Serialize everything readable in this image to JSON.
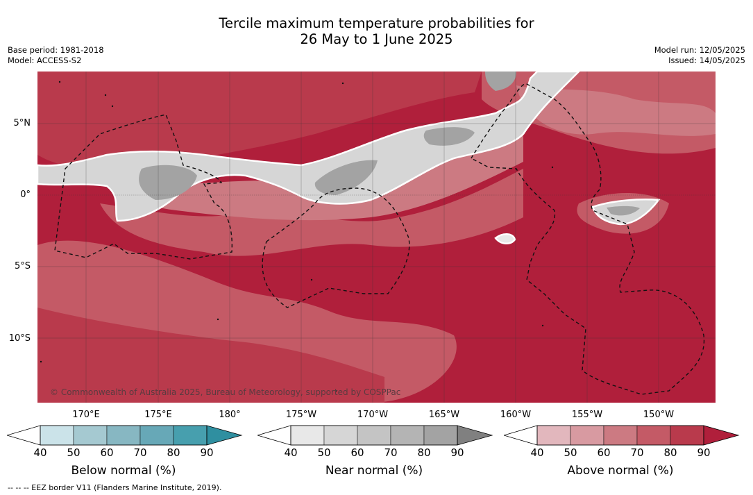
{
  "title": {
    "line1": "Tercile maximum temperature probabilities for",
    "line2": "26 May to 1 June 2025"
  },
  "meta": {
    "base_period": "Base period: 1981-2018",
    "model": "Model: ACCESS-S2",
    "model_run": "Model run: 12/05/2025",
    "issued": "Issued: 14/05/2025"
  },
  "map": {
    "lat_labels": [
      "5°N",
      "0°",
      "5°S",
      "10°S"
    ],
    "lon_labels": [
      "170°E",
      "175°E",
      "180°",
      "175°W",
      "170°W",
      "165°W",
      "160°W",
      "155°W",
      "150°W"
    ],
    "credit": "© Commonwealth of Australia 2025, Bureau of Meteorology, supported by COSPPac"
  },
  "colorbars": [
    {
      "title": "Below normal (%)",
      "ticks": [
        "40",
        "50",
        "60",
        "70",
        "80",
        "90"
      ],
      "colors": [
        "#cbe3e9",
        "#a5c9d1",
        "#87b7c2",
        "#67a8b7",
        "#479fae",
        "#2f8fa0"
      ]
    },
    {
      "title": "Near normal (%)",
      "ticks": [
        "40",
        "50",
        "60",
        "70",
        "80",
        "90"
      ],
      "colors": [
        "#e8e8e8",
        "#d6d6d6",
        "#c4c4c4",
        "#b4b4b4",
        "#a3a3a3",
        "#808080"
      ]
    },
    {
      "title": "Above normal (%)",
      "ticks": [
        "40",
        "50",
        "60",
        "70",
        "80",
        "90"
      ],
      "colors": [
        "#e2b7bd",
        "#d89aa1",
        "#cc7a82",
        "#c45a66",
        "#b93a4c",
        "#b01f3b"
      ]
    }
  ],
  "footnote": "--  --  -- EEZ border V11 (Flanders Marine Institute, 2019)."
}
